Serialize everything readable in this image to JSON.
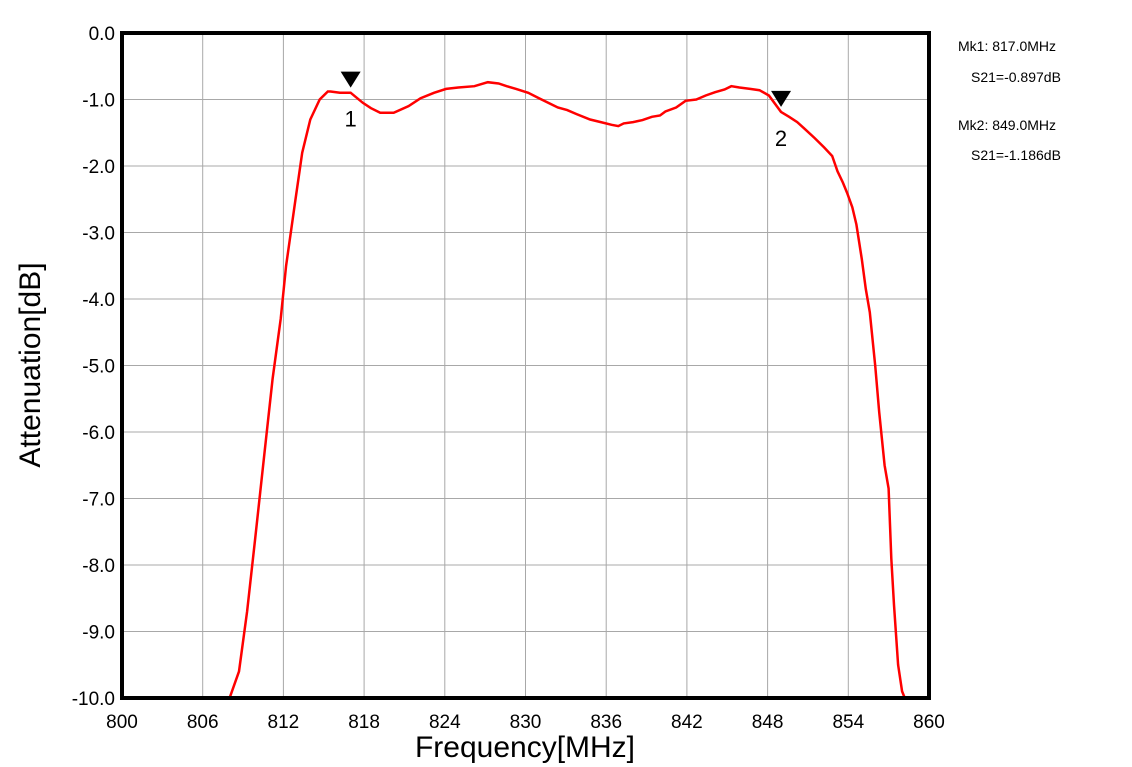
{
  "chart_data": {
    "type": "line",
    "title": "",
    "xlabel": "Frequency[MHz]",
    "ylabel": "Attenuation[dB]",
    "xlim": [
      800,
      860
    ],
    "ylim": [
      -10,
      0
    ],
    "x_ticks": [
      800,
      806,
      812,
      818,
      824,
      830,
      836,
      842,
      848,
      854,
      860
    ],
    "x_tick_labels": [
      "800",
      "806",
      "812",
      "818",
      "824",
      "830",
      "836",
      "842",
      "848",
      "854",
      "860"
    ],
    "y_ticks": [
      0,
      -1,
      -2,
      -3,
      -4,
      -5,
      -6,
      -7,
      -8,
      -9,
      -10
    ],
    "y_tick_labels": [
      "0.0",
      "-1.0",
      "-2.0",
      "-3.0",
      "-4.0",
      "-5.0",
      "-6.0",
      "-7.0",
      "-8.0",
      "-9.0",
      "-10.0"
    ],
    "grid": true,
    "line_color": "#ff0000",
    "series": [
      {
        "x": [
          800,
          808,
          808.7,
          809.3,
          809.9,
          810.6,
          811.2,
          811.8,
          812.2,
          812.9,
          813.4,
          814.0,
          814.7,
          815.3,
          815.5,
          816.2,
          817.0,
          817.9,
          818.5,
          819.2,
          820.2,
          821.3,
          822.2,
          823.2,
          824.1,
          825.0,
          826.2,
          827.2,
          828.0,
          828.6,
          829.3,
          830.2,
          831.0,
          831.8,
          832.4,
          833.1,
          833.8,
          834.8,
          835.6,
          836.4,
          836.9,
          837.3,
          838.0,
          838.7,
          839.4,
          840.0,
          840.4,
          841.2,
          841.9,
          842.7,
          843.4,
          844.1,
          844.8,
          845.3,
          845.9,
          846.7,
          847.4,
          848.1,
          849.0,
          849.6,
          850.2,
          850.8,
          851.5,
          852.2,
          852.8,
          853.2,
          853.6,
          853.9,
          854.3,
          854.6,
          855.0,
          855.3,
          855.6,
          856.0,
          856.3,
          856.7,
          857.0,
          857.2,
          857.4,
          857.7,
          858.0,
          858.2,
          858.6,
          860
        ],
        "values": [
          -10.0,
          -10.0,
          -9.6,
          -8.7,
          -7.6,
          -6.3,
          -5.2,
          -4.3,
          -3.5,
          -2.5,
          -1.8,
          -1.3,
          -1.0,
          -0.88,
          -0.88,
          -0.9,
          -0.897,
          -1.05,
          -1.13,
          -1.2,
          -1.2,
          -1.1,
          -0.98,
          -0.9,
          -0.84,
          -0.82,
          -0.8,
          -0.74,
          -0.76,
          -0.8,
          -0.84,
          -0.9,
          -0.98,
          -1.06,
          -1.12,
          -1.16,
          -1.22,
          -1.3,
          -1.34,
          -1.38,
          -1.4,
          -1.36,
          -1.34,
          -1.31,
          -1.26,
          -1.24,
          -1.18,
          -1.12,
          -1.02,
          -1.0,
          -0.94,
          -0.89,
          -0.85,
          -0.8,
          -0.82,
          -0.84,
          -0.86,
          -0.94,
          -1.186,
          -1.26,
          -1.34,
          -1.45,
          -1.58,
          -1.72,
          -1.85,
          -2.08,
          -2.25,
          -2.4,
          -2.62,
          -2.88,
          -3.4,
          -3.85,
          -4.2,
          -5.0,
          -5.7,
          -6.5,
          -6.85,
          -7.9,
          -8.6,
          -9.5,
          -9.9,
          -10.0,
          -10.0,
          -10.0
        ]
      }
    ],
    "markers": [
      {
        "label": "1",
        "x": 817.0,
        "y": -0.897
      },
      {
        "label": "2",
        "x": 849.0,
        "y": -1.186
      }
    ]
  },
  "readouts": {
    "mk1_freq": "Mk1:  817.0MHz",
    "mk1_s21": "S21=-0.897dB",
    "mk2_freq": "Mk2:  849.0MHz",
    "mk2_s21": "S21=-1.186dB"
  }
}
